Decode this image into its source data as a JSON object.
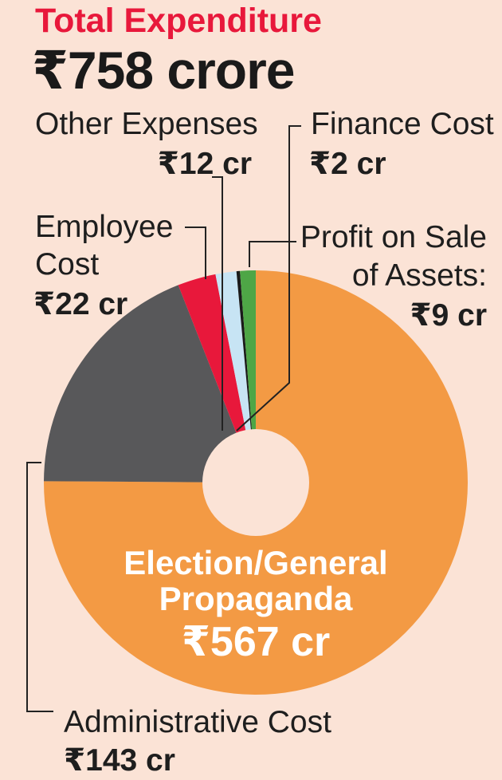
{
  "header": {
    "title": "Total Expenditure",
    "total": "₹758 crore"
  },
  "chart_data": {
    "type": "pie",
    "title": "Total Expenditure",
    "subtitle": "₹758 crore",
    "unit": "₹ crore",
    "slices": [
      {
        "key": "election",
        "name": "Election/General Propaganda",
        "value": 567,
        "label_lines": [
          "Election/General",
          "Propaganda"
        ],
        "value_label": "₹567 cr",
        "color": "#F39A44"
      },
      {
        "key": "admin",
        "name": "Administrative Cost",
        "value": 143,
        "label_lines": [
          "Administrative Cost"
        ],
        "value_label": "₹143 cr",
        "color": "#58585A"
      },
      {
        "key": "employee",
        "name": "Employee Cost",
        "value": 22,
        "label_lines": [
          "Employee",
          "Cost"
        ],
        "value_label": "₹22 cr",
        "color": "#E8183B"
      },
      {
        "key": "other",
        "name": "Other Expenses",
        "value": 12,
        "label_lines": [
          "Other Expenses"
        ],
        "value_label": "₹12 cr",
        "color": "#C7E4F4"
      },
      {
        "key": "finance",
        "name": "Finance Cost",
        "value": 2,
        "label_lines": [
          "Finance Cost"
        ],
        "value_label": "₹2 cr",
        "color": "#1A1A1A"
      },
      {
        "key": "profit",
        "name": "Profit on Sale of Assets",
        "value": 9,
        "label_lines": [
          "Profit on Sale",
          "of Assets:"
        ],
        "value_label": "₹9 cr",
        "color": "#4EA646"
      }
    ]
  }
}
